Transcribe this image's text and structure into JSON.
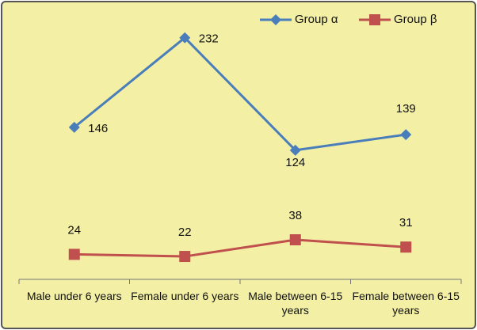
{
  "chart_data": {
    "type": "line",
    "categories": [
      "Male under 6 years",
      "Female under 6 years",
      "Male between 6-15 years",
      "Female between 6-15 years"
    ],
    "series": [
      {
        "name": "Group α",
        "color": "#4a7ebb",
        "marker": "diamond",
        "values": [
          146,
          232,
          124,
          139
        ]
      },
      {
        "name": "Group β",
        "color": "#c0504d",
        "marker": "square",
        "values": [
          24,
          22,
          38,
          31
        ]
      }
    ],
    "ylim": [
      0,
      250
    ],
    "legend": "top-right"
  }
}
